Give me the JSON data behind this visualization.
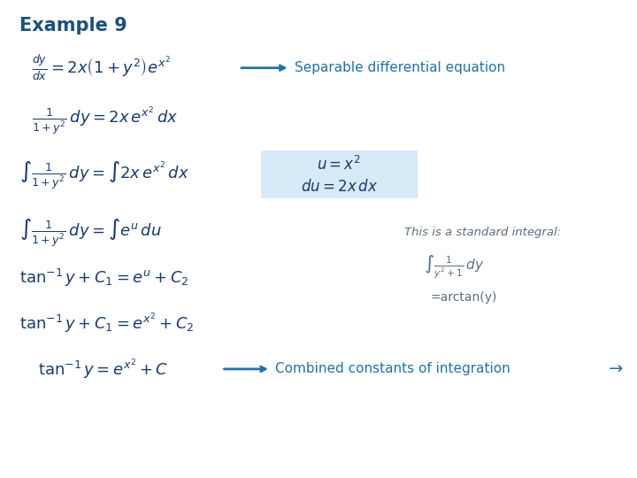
{
  "title": "Example 9",
  "title_color": "#1a5276",
  "bg_color": "#ffffff",
  "math_color": "#1a3a6b",
  "annotation_color": "#2471a3",
  "box_color": "#d6eaf8",
  "note_color": "#5d6d7e",
  "label_sep": "Separable differential equation",
  "label_std": "This is a standard integral:",
  "label_arctan": "=arctan(y)",
  "label_combined": "Combined constants of integration",
  "arrow_right": "→",
  "figsize": [
    7.2,
    5.4
  ],
  "dpi": 100
}
